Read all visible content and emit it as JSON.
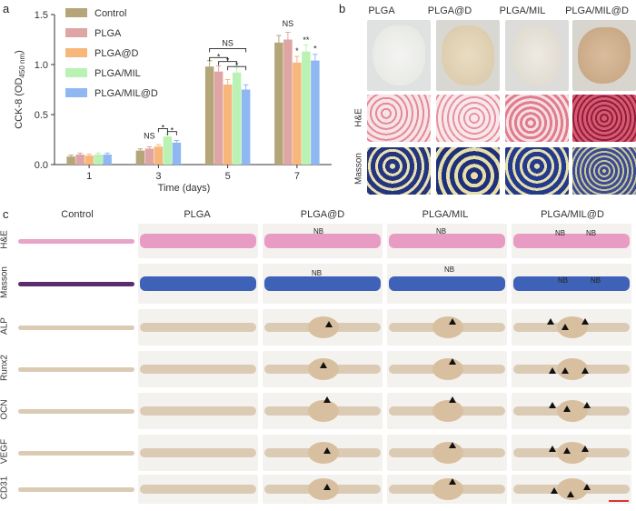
{
  "panels": {
    "a": "a",
    "b": "b",
    "c": "c"
  },
  "chart_data": {
    "type": "bar",
    "categories": [
      "1",
      "3",
      "5",
      "7"
    ],
    "xlabel": "Time (days)",
    "ylabel_main": "CCK-8 (OD",
    "ylabel_sub": "450 nm",
    "ylabel_close": ")",
    "ylim": [
      0,
      1.5
    ],
    "yticks": [
      "0.0",
      "0.5",
      "1.0",
      "1.5"
    ],
    "legend_position": "top-left",
    "series": [
      {
        "name": "Control",
        "color": "#b5a67a",
        "values": [
          0.08,
          0.14,
          0.98,
          1.22
        ]
      },
      {
        "name": "PLGA",
        "color": "#dfa5a5",
        "values": [
          0.1,
          0.16,
          0.93,
          1.25
        ]
      },
      {
        "name": "PLGA@D",
        "color": "#f8b77a",
        "values": [
          0.09,
          0.18,
          0.8,
          1.02
        ]
      },
      {
        "name": "PLGA/MIL",
        "color": "#b9f2b3",
        "values": [
          0.1,
          0.28,
          0.92,
          1.13
        ]
      },
      {
        "name": "PLGA/MIL@D",
        "color": "#8fb8f2",
        "values": [
          0.1,
          0.22,
          0.75,
          1.04
        ]
      }
    ],
    "annotations": {
      "day3": [
        "NS",
        "*",
        "*"
      ],
      "day5": [
        "NS",
        "*",
        "*",
        "*"
      ],
      "day7": [
        "NS",
        "*",
        "**",
        "*"
      ]
    }
  },
  "panel_b": {
    "columns": [
      "PLGA",
      "PLGA@D",
      "PLGA/MIL",
      "PLGA/MIL@D"
    ],
    "rows": [
      "H&E",
      "Masson"
    ]
  },
  "panel_c": {
    "columns": [
      "Control",
      "PLGA",
      "PLGA@D",
      "PLGA/MIL",
      "PLGA/MIL@D"
    ],
    "rows": [
      "H&E",
      "Masson",
      "ALP",
      "Runx2",
      "OCN",
      "VEGF",
      "CD31"
    ],
    "nb_label": "NB"
  }
}
